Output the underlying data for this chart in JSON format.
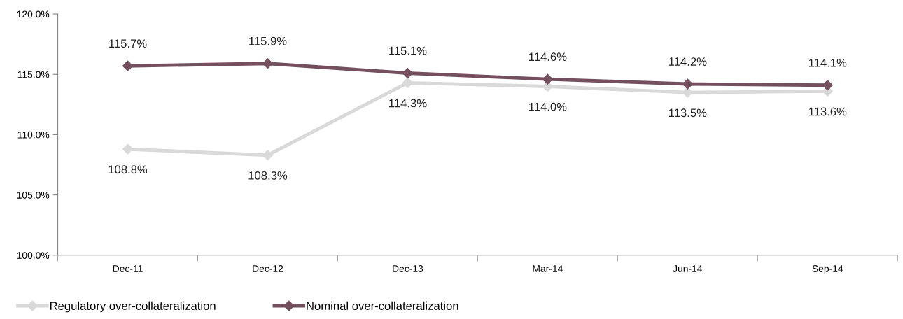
{
  "chart_data": {
    "type": "line",
    "categories": [
      "Dec-11",
      "Dec-12",
      "Dec-13",
      "Mar-14",
      "Jun-14",
      "Sep-14"
    ],
    "series": [
      {
        "name": "Regulatory over-collateralization",
        "color": "#d9d9d9",
        "values": [
          108.8,
          108.3,
          114.3,
          114.0,
          113.5,
          113.6
        ],
        "value_labels": [
          "108.8%",
          "108.3%",
          "114.3%",
          "114.0%",
          "113.5%",
          "113.6%"
        ]
      },
      {
        "name": "Nominal over-collateralization",
        "color": "#74505f",
        "values": [
          115.7,
          115.9,
          115.1,
          114.6,
          114.2,
          114.1
        ],
        "value_labels": [
          "115.7%",
          "115.9%",
          "115.1%",
          "114.6%",
          "114.2%",
          "114.1%"
        ]
      }
    ],
    "ylim": [
      100,
      120
    ],
    "yticks": [
      {
        "value": 100,
        "label": "100.0%"
      },
      {
        "value": 105,
        "label": "105.0%"
      },
      {
        "value": 110,
        "label": "110.0%"
      },
      {
        "value": 115,
        "label": "115.0%"
      },
      {
        "value": 120,
        "label": "120.0%"
      }
    ],
    "marker": "diamond",
    "line_style": "solid",
    "grid": false,
    "legend": "bottom left"
  }
}
